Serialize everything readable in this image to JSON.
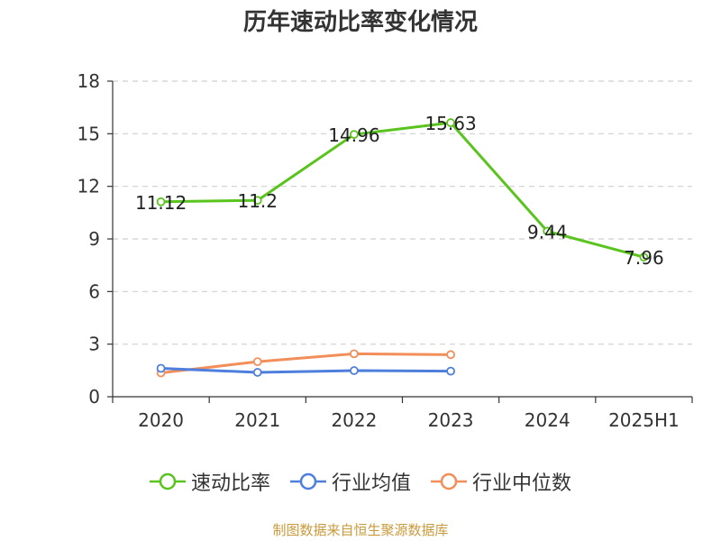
{
  "page": {
    "title": "历年速动比率变化情况",
    "source": "制图数据来自恒生聚源数据库"
  },
  "colors": {
    "series_1": "#5ac41e",
    "series_2": "#4e7fdc",
    "series_3": "#f28e5a",
    "grid": "#cfcfcf",
    "axis": "#333333"
  },
  "chart_data": {
    "type": "line",
    "title": "历年速动比率变化情况",
    "xlabel": "",
    "ylabel": "",
    "categories": [
      "2020",
      "2021",
      "2022",
      "2023",
      "2024",
      "2025H1"
    ],
    "ylim": [
      0,
      18
    ],
    "yticks": [
      0,
      3,
      6,
      9,
      12,
      15,
      18
    ],
    "grid": "horizontal-dashed",
    "legend_position": "bottom",
    "series": [
      {
        "name": "速动比率",
        "color_key": "series_1",
        "values": [
          11.12,
          11.2,
          14.96,
          15.63,
          9.44,
          7.96
        ],
        "labels": [
          "11.12",
          "11.2",
          "14.96",
          "15.63",
          "9.44",
          "7.96"
        ],
        "show_labels": true
      },
      {
        "name": "行业均值",
        "color_key": "series_2",
        "values": [
          1.62,
          1.39,
          1.49,
          1.46,
          null,
          null
        ],
        "show_labels": false
      },
      {
        "name": "行业中位数",
        "color_key": "series_3",
        "values": [
          1.36,
          2.0,
          2.45,
          2.4,
          null,
          null
        ],
        "show_labels": false
      }
    ]
  }
}
